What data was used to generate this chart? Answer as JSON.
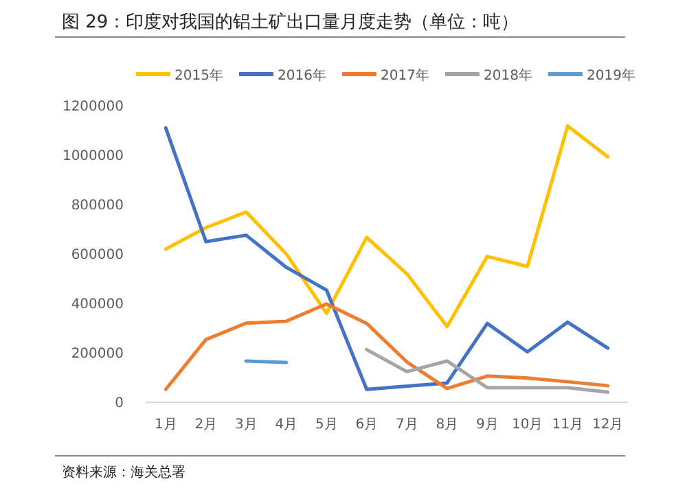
{
  "chart_data": {
    "type": "line",
    "title": "图 29：印度对我国的铝土矿出口量月度走势（单位：吨）",
    "annotations": [
      "资料来源：海关总署"
    ],
    "categories": [
      "1月",
      "2月",
      "3月",
      "4月",
      "5月",
      "6月",
      "7月",
      "8月",
      "9月",
      "10月",
      "11月",
      "12月"
    ],
    "series": [
      {
        "name": "2015年",
        "color": "#ffc000",
        "values": [
          620000,
          707000,
          770000,
          600000,
          360000,
          667000,
          520000,
          306000,
          590000,
          550000,
          1118000,
          993000
        ]
      },
      {
        "name": "2016年",
        "color": "#4472c4",
        "values": [
          1110000,
          650000,
          676000,
          546000,
          454000,
          52000,
          65000,
          78000,
          319000,
          204000,
          324000,
          219000
        ]
      },
      {
        "name": "2017年",
        "color": "#ed7d31",
        "values": [
          52000,
          254000,
          320000,
          328000,
          398000,
          319000,
          163000,
          56000,
          106000,
          98000,
          83000,
          67000
        ]
      },
      {
        "name": "2018年",
        "color": "#a5a5a5",
        "values": [
          null,
          null,
          null,
          null,
          null,
          213000,
          124000,
          167000,
          59000,
          59000,
          59000,
          41000
        ]
      },
      {
        "name": "2019年",
        "color": "#5b9bd5",
        "values": [
          null,
          null,
          167000,
          161000,
          null,
          null,
          null,
          null,
          null,
          null,
          null,
          null
        ]
      }
    ],
    "ylim": [
      0,
      1200000
    ],
    "yticks": [
      0,
      200000,
      400000,
      600000,
      800000,
      1000000,
      1200000
    ],
    "grid": false,
    "legend": "top",
    "marker": "none",
    "line_style": "solid"
  }
}
